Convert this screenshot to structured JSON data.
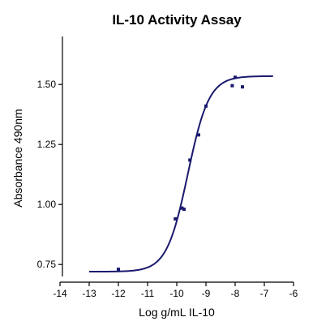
{
  "chart_data": {
    "type": "scatter",
    "title": "IL-10 Activity Assay",
    "xlabel": "Log g/mL IL-10",
    "ylabel": "Absorbance 490nm",
    "xlim": [
      -14,
      -6
    ],
    "ylim": [
      0.7,
      1.7
    ],
    "x_ticks": [
      -14,
      -13,
      -12,
      -11,
      -10,
      -9,
      -8,
      -7,
      -6
    ],
    "x_tick_labels": [
      "-14",
      "-13",
      "-12",
      "-11",
      "-10",
      "-9",
      "-8",
      "-7",
      "-6"
    ],
    "y_ticks": [
      0.75,
      1.0,
      1.25,
      1.5
    ],
    "y_tick_labels": [
      "0.75",
      "1.00",
      "1.25",
      "1.50"
    ],
    "grid": false,
    "legend": "none",
    "series": [
      {
        "kind": "points",
        "color": "#1a1a6e",
        "x": [
          -12.0,
          -10.05,
          -9.82,
          -9.75,
          -9.55,
          -9.25,
          -9.0,
          -8.1,
          -8.0,
          -7.75
        ],
        "y": [
          0.73,
          0.94,
          0.985,
          0.98,
          1.185,
          1.29,
          1.41,
          1.495,
          1.53,
          1.49
        ]
      },
      {
        "kind": "fit-curve",
        "model": "four-parameter-logistic",
        "color": "#1a1a6e",
        "bottom": 0.72,
        "top": 1.535,
        "log_ec50": -9.62,
        "hill_slope": 1.2,
        "x_range": [
          -13.0,
          -6.7
        ]
      }
    ]
  }
}
